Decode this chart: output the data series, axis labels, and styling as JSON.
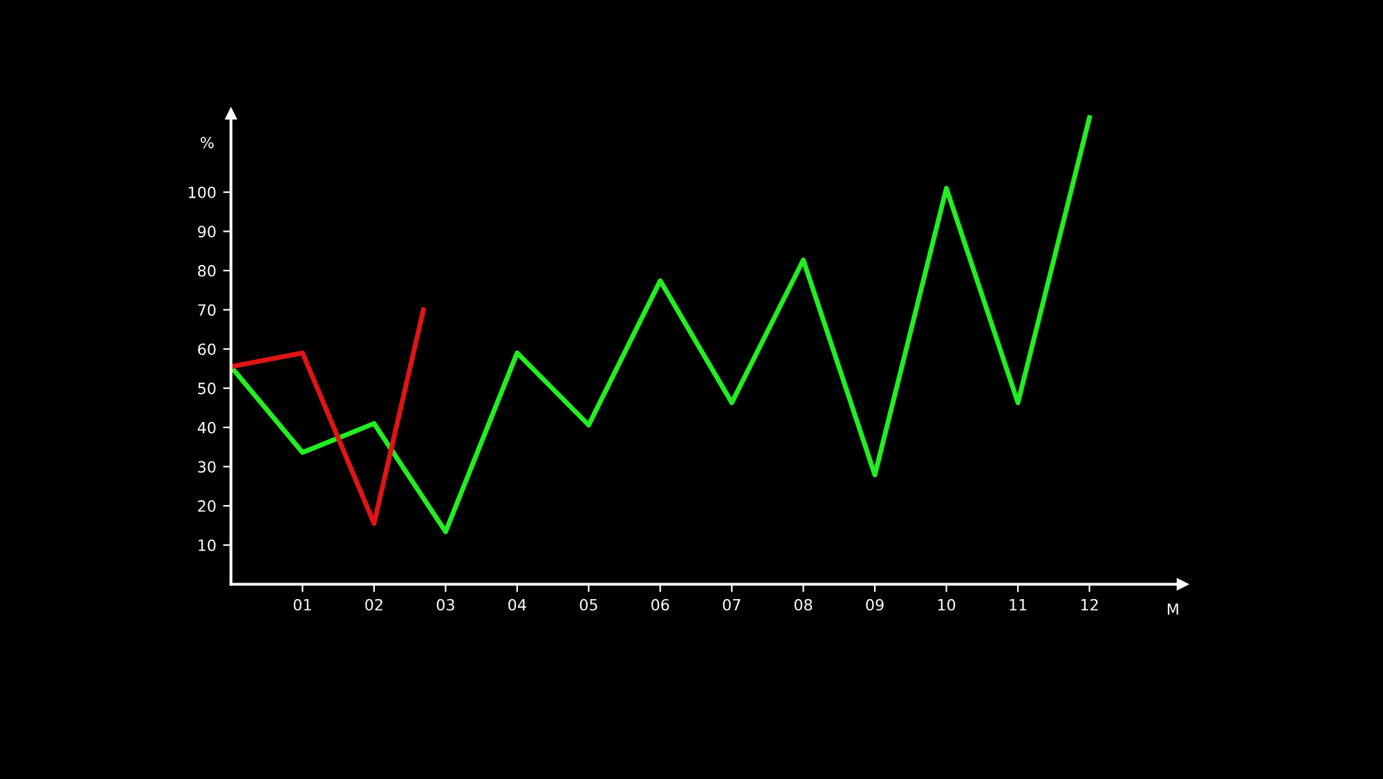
{
  "chart_data": {
    "type": "line",
    "xlabel": "M",
    "ylabel": "%",
    "xlim": [
      0,
      13.3
    ],
    "ylim": [
      0,
      120
    ],
    "xticks": [
      {
        "value": 1,
        "label": "01"
      },
      {
        "value": 2,
        "label": "02"
      },
      {
        "value": 3,
        "label": "03"
      },
      {
        "value": 4,
        "label": "04"
      },
      {
        "value": 5,
        "label": "05"
      },
      {
        "value": 6,
        "label": "06"
      },
      {
        "value": 7,
        "label": "07"
      },
      {
        "value": 8,
        "label": "08"
      },
      {
        "value": 9,
        "label": "09"
      },
      {
        "value": 10,
        "label": "10"
      },
      {
        "value": 11,
        "label": "11"
      },
      {
        "value": 12,
        "label": "12"
      }
    ],
    "yticks": [
      10,
      20,
      30,
      40,
      50,
      60,
      70,
      80,
      90,
      100
    ],
    "grid": false,
    "legend": false,
    "marker": "none",
    "line_style": "solid",
    "series": [
      {
        "color": "#22ee22",
        "x": [
          0,
          1,
          2,
          3,
          4,
          5,
          6,
          7,
          8,
          9,
          10,
          11,
          12
        ],
        "values": [
          55.5,
          33.6,
          41,
          13.4,
          59,
          40.6,
          77.4,
          46.3,
          82.7,
          27.9,
          101,
          46.3,
          119
        ]
      },
      {
        "color": "#e01515",
        "x": [
          0,
          1,
          2,
          2.69
        ],
        "values": [
          55.5,
          59,
          15.5,
          70
        ]
      }
    ]
  }
}
